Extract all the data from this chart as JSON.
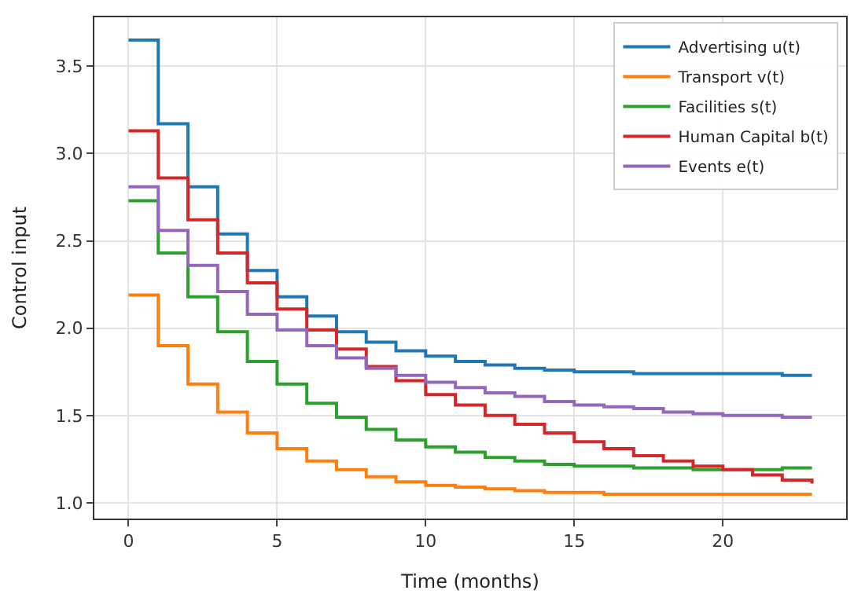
{
  "chart_data": {
    "type": "step",
    "xlabel": "Time (months)",
    "ylabel": "Control input",
    "x": [
      0,
      1,
      2,
      3,
      4,
      5,
      6,
      7,
      8,
      9,
      10,
      11,
      12,
      13,
      14,
      15,
      16,
      17,
      18,
      19,
      20,
      21,
      22,
      23
    ],
    "series": [
      {
        "name": "Advertising u(t)",
        "color": "#1f77b4",
        "values": [
          3.65,
          3.17,
          2.81,
          2.54,
          2.33,
          2.18,
          2.07,
          1.98,
          1.92,
          1.87,
          1.84,
          1.81,
          1.79,
          1.77,
          1.76,
          1.75,
          1.75,
          1.74,
          1.74,
          1.74,
          1.74,
          1.74,
          1.73,
          1.73
        ]
      },
      {
        "name": "Transport v(t)",
        "color": "#ff7f0e",
        "values": [
          2.19,
          1.9,
          1.68,
          1.52,
          1.4,
          1.31,
          1.24,
          1.19,
          1.15,
          1.12,
          1.1,
          1.09,
          1.08,
          1.07,
          1.06,
          1.06,
          1.05,
          1.05,
          1.05,
          1.05,
          1.05,
          1.05,
          1.05,
          1.05
        ]
      },
      {
        "name": "Facilities s(t)",
        "color": "#2ca02c",
        "values": [
          2.73,
          2.43,
          2.18,
          1.98,
          1.81,
          1.68,
          1.57,
          1.49,
          1.42,
          1.36,
          1.32,
          1.29,
          1.26,
          1.24,
          1.22,
          1.21,
          1.21,
          1.2,
          1.2,
          1.19,
          1.19,
          1.19,
          1.2,
          1.2
        ]
      },
      {
        "name": "Human Capital b(t)",
        "color": "#d62728",
        "values": [
          3.13,
          2.86,
          2.62,
          2.43,
          2.26,
          2.11,
          1.99,
          1.88,
          1.78,
          1.7,
          1.62,
          1.56,
          1.5,
          1.45,
          1.4,
          1.35,
          1.31,
          1.27,
          1.24,
          1.21,
          1.19,
          1.16,
          1.13,
          1.11
        ]
      },
      {
        "name": "Events e(t)",
        "color": "#9467bd",
        "values": [
          2.81,
          2.56,
          2.36,
          2.21,
          2.08,
          1.99,
          1.9,
          1.83,
          1.77,
          1.73,
          1.69,
          1.66,
          1.63,
          1.61,
          1.58,
          1.56,
          1.55,
          1.54,
          1.52,
          1.51,
          1.5,
          1.5,
          1.49,
          1.49
        ]
      }
    ],
    "xlim": [
      -1.15,
      24.15
    ],
    "ylim": [
      0.91,
      3.78
    ],
    "xticks": [
      0,
      5,
      10,
      15,
      20
    ],
    "yticks": [
      {
        "value": 1,
        "label": "1.0"
      },
      1.5,
      {
        "value": 2,
        "label": "2.0"
      },
      2.5,
      {
        "value": 3,
        "label": "3.0"
      },
      3.5
    ],
    "grid": true,
    "legend": "top right",
    "line_style": "solid",
    "marker": "none"
  }
}
